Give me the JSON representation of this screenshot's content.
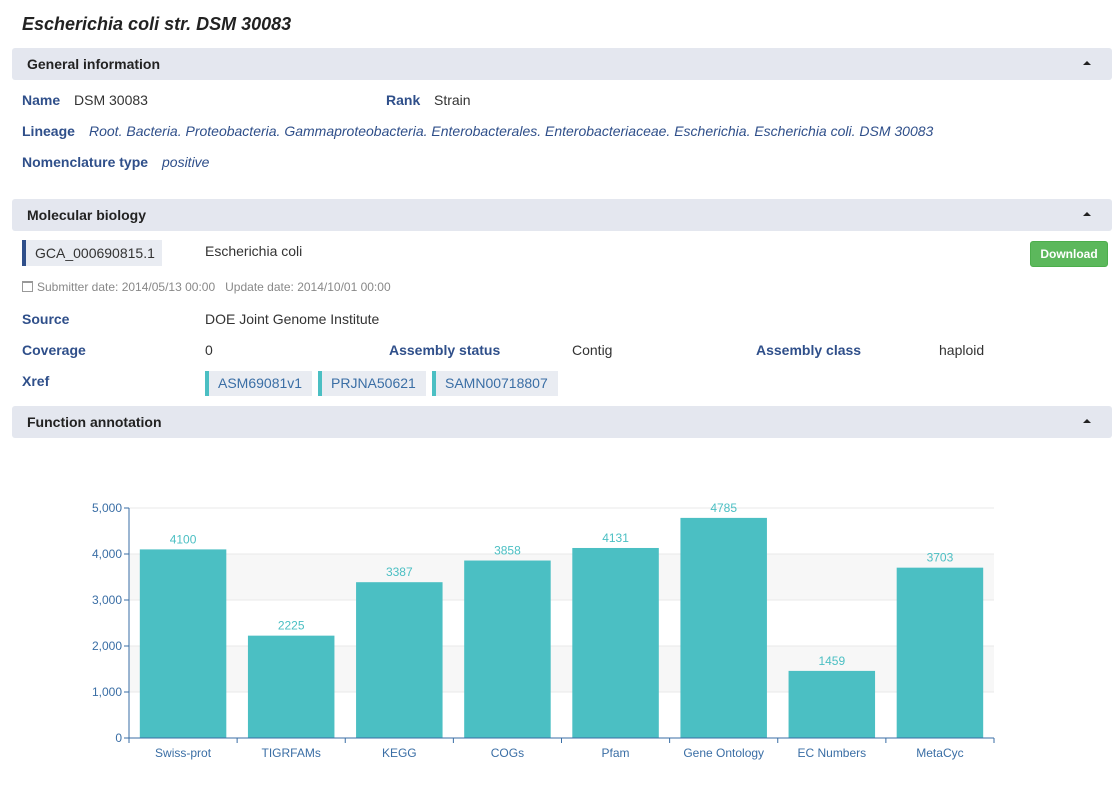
{
  "page": {
    "title": "Escherichia coli str. DSM 30083"
  },
  "general": {
    "header": "General information",
    "name_label": "Name",
    "name_value": "DSM 30083",
    "rank_label": "Rank",
    "rank_value": "Strain",
    "lineage_label": "Lineage",
    "lineage_value": "Root. Bacteria. Proteobacteria. Gammaproteobacteria. Enterobacterales. Enterobacteriaceae. Escherichia. Escherichia coli. DSM 30083",
    "nomenclature_label": "Nomenclature type",
    "nomenclature_value": "positive"
  },
  "molecular": {
    "header": "Molecular biology",
    "accession": "GCA_000690815.1",
    "organism": "Escherichia coli",
    "download_label": "Download",
    "submitter_date": "Submitter date: 2014/05/13 00:00",
    "update_date": "Update date: 2014/10/01 00:00",
    "source_label": "Source",
    "source_value": "DOE Joint Genome Institute",
    "coverage_label": "Coverage",
    "coverage_value": "0",
    "assembly_status_label": "Assembly status",
    "assembly_status_value": "Contig",
    "assembly_class_label": "Assembly class",
    "assembly_class_value": "haploid",
    "xref_label": "Xref",
    "xrefs": [
      "ASM69081v1",
      "PRJNA50621",
      "SAMN00718807"
    ],
    "colors": {
      "label": "#2f4f8a",
      "accent": "#2f4f8a",
      "xref_accent": "#4bbfc3",
      "download": "#5cb85c"
    }
  },
  "function": {
    "header": "Function annotation"
  },
  "chart_data": {
    "type": "bar",
    "categories": [
      "Swiss-prot",
      "TIGRFAMs",
      "KEGG",
      "COGs",
      "Pfam",
      "Gene Ontology",
      "EC Numbers",
      "MetaCyc"
    ],
    "values": [
      4100,
      2225,
      3387,
      3858,
      4131,
      4785,
      1459,
      3703
    ],
    "title": "",
    "xlabel": "",
    "ylabel": "",
    "ylim": [
      0,
      5000
    ],
    "yticks": [
      "0",
      "1,000",
      "2,000",
      "3,000",
      "4,000",
      "5,000"
    ],
    "grid": true,
    "bar_color": "#4bbfc3"
  }
}
